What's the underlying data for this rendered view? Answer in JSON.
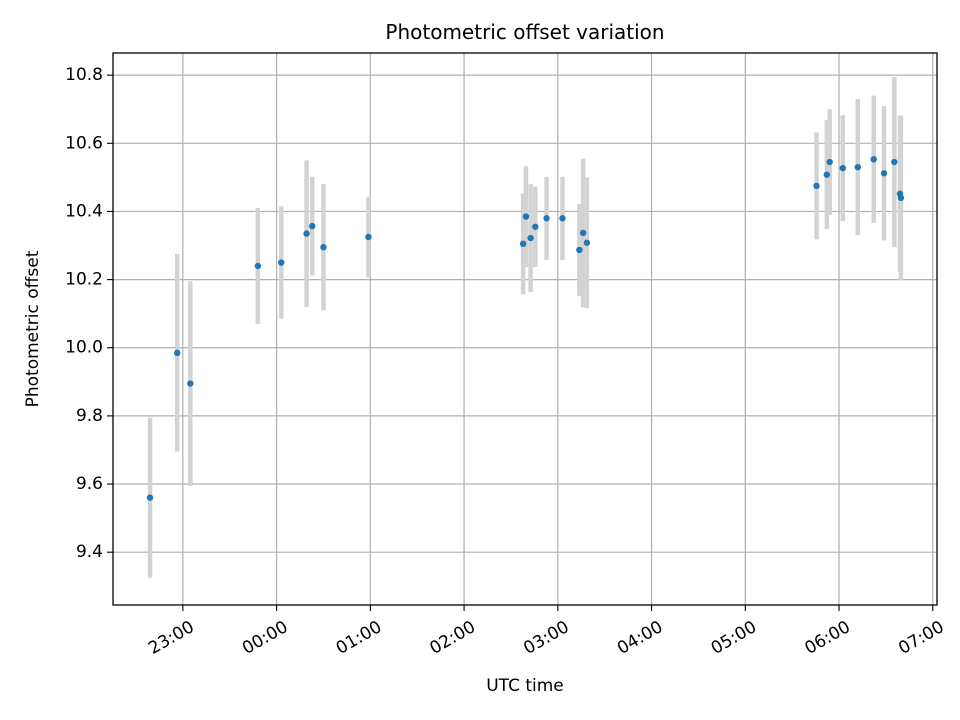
{
  "chart_data": {
    "type": "scatter",
    "title": "Photometric offset variation",
    "xlabel": "UTC time",
    "ylabel": "Photometric offset",
    "x_unit": "hours relative to 00:00 UTC",
    "xlim": [
      -1.745,
      7.045
    ],
    "ylim": [
      9.245,
      10.865
    ],
    "grid": true,
    "x_ticks": [
      {
        "value": -1,
        "label": "23:00"
      },
      {
        "value": 0,
        "label": "00:00"
      },
      {
        "value": 1,
        "label": "01:00"
      },
      {
        "value": 2,
        "label": "02:00"
      },
      {
        "value": 3,
        "label": "03:00"
      },
      {
        "value": 4,
        "label": "04:00"
      },
      {
        "value": 5,
        "label": "05:00"
      },
      {
        "value": 6,
        "label": "06:00"
      },
      {
        "value": 7,
        "label": "07:00"
      }
    ],
    "y_ticks": [
      {
        "value": 9.4,
        "label": "9.4"
      },
      {
        "value": 9.6,
        "label": "9.6"
      },
      {
        "value": 9.8,
        "label": "9.8"
      },
      {
        "value": 10.0,
        "label": "10.0"
      },
      {
        "value": 10.2,
        "label": "10.2"
      },
      {
        "value": 10.4,
        "label": "10.4"
      },
      {
        "value": 10.6,
        "label": "10.6"
      },
      {
        "value": 10.8,
        "label": "10.8"
      }
    ],
    "series": [
      {
        "marker_color": "#1f77b4",
        "errorbar_color": "#d3d3d3",
        "points": [
          {
            "x": -1.35,
            "y": 9.56,
            "err": 0.235
          },
          {
            "x": -1.06,
            "y": 9.985,
            "err": 0.29
          },
          {
            "x": -0.92,
            "y": 9.895,
            "err": 0.3
          },
          {
            "x": -0.2,
            "y": 10.24,
            "err": 0.17
          },
          {
            "x": 0.05,
            "y": 10.25,
            "err": 0.165
          },
          {
            "x": 0.32,
            "y": 10.335,
            "err": 0.215
          },
          {
            "x": 0.38,
            "y": 10.357,
            "err": 0.145
          },
          {
            "x": 0.5,
            "y": 10.295,
            "err": 0.185
          },
          {
            "x": 0.98,
            "y": 10.325,
            "err": 0.118
          },
          {
            "x": 2.63,
            "y": 10.305,
            "err": 0.148
          },
          {
            "x": 2.66,
            "y": 10.385,
            "err": 0.148
          },
          {
            "x": 2.71,
            "y": 10.322,
            "err": 0.158
          },
          {
            "x": 2.76,
            "y": 10.355,
            "err": 0.118
          },
          {
            "x": 2.88,
            "y": 10.38,
            "err": 0.122
          },
          {
            "x": 3.05,
            "y": 10.38,
            "err": 0.122
          },
          {
            "x": 3.23,
            "y": 10.287,
            "err": 0.135
          },
          {
            "x": 3.27,
            "y": 10.337,
            "err": 0.218
          },
          {
            "x": 3.31,
            "y": 10.308,
            "err": 0.192
          },
          {
            "x": 5.76,
            "y": 10.475,
            "err": 0.157
          },
          {
            "x": 5.87,
            "y": 10.508,
            "err": 0.16
          },
          {
            "x": 5.9,
            "y": 10.545,
            "err": 0.155
          },
          {
            "x": 6.04,
            "y": 10.527,
            "err": 0.155
          },
          {
            "x": 6.2,
            "y": 10.53,
            "err": 0.2
          },
          {
            "x": 6.37,
            "y": 10.553,
            "err": 0.187
          },
          {
            "x": 6.48,
            "y": 10.512,
            "err": 0.197
          },
          {
            "x": 6.59,
            "y": 10.545,
            "err": 0.25
          },
          {
            "x": 6.65,
            "y": 10.452,
            "err": 0.23
          },
          {
            "x": 6.66,
            "y": 10.44,
            "err": 0.24
          }
        ]
      }
    ]
  }
}
